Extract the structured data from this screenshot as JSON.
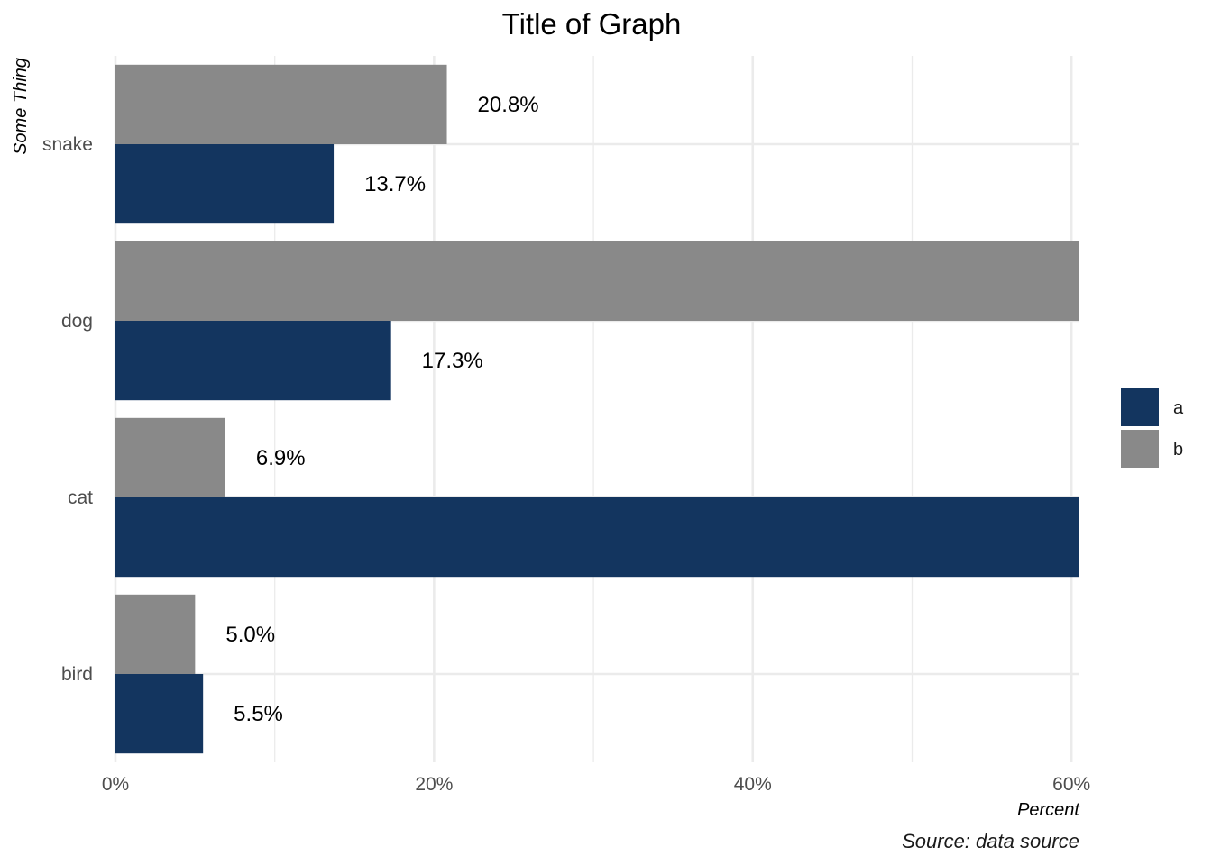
{
  "chart_data": {
    "type": "bar",
    "orientation": "horizontal",
    "title": "Title of Graph",
    "xlabel": "Percent",
    "ylabel": "Some Thing",
    "caption": "Source: data source",
    "categories": [
      "bird",
      "cat",
      "dog",
      "snake"
    ],
    "series": [
      {
        "name": "a",
        "color": "#13355f",
        "values": [
          5.5,
          62.0,
          17.3,
          13.7
        ],
        "labels": [
          "5.5%",
          "",
          "17.3%",
          "13.7%"
        ]
      },
      {
        "name": "b",
        "color": "#898989",
        "values": [
          5.0,
          6.9,
          62.0,
          20.8
        ],
        "labels": [
          "5.0%",
          "6.9%",
          "",
          "20.8%"
        ]
      }
    ],
    "xlim": [
      0,
      60.5
    ],
    "x_ticks": [
      0,
      20,
      40,
      60
    ],
    "x_tick_labels": [
      "0%",
      "20%",
      "40%",
      "60%"
    ],
    "grid": true,
    "legend": "right"
  }
}
